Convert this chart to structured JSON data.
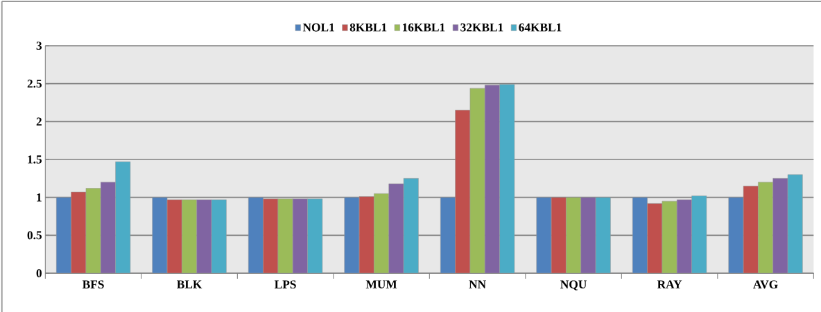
{
  "chart_data": {
    "type": "bar",
    "categories": [
      "BFS",
      "BLK",
      "LPS",
      "MUM",
      "NN",
      "NQU",
      "RAY",
      "AVG"
    ],
    "series": [
      {
        "name": "NOL1",
        "color": "#4f81bd",
        "values": [
          1,
          1,
          1,
          1,
          1,
          1,
          1,
          1
        ]
      },
      {
        "name": "8KBL1",
        "color": "#c0504d",
        "values": [
          1.07,
          0.97,
          0.98,
          1.01,
          2.15,
          1,
          0.92,
          1.15
        ]
      },
      {
        "name": "16KBL1",
        "color": "#9bbb59",
        "values": [
          1.12,
          0.97,
          0.98,
          1.05,
          2.44,
          1,
          0.95,
          1.2
        ]
      },
      {
        "name": "32KBL1",
        "color": "#8064a2",
        "values": [
          1.2,
          0.97,
          0.98,
          1.18,
          2.48,
          1,
          0.97,
          1.25
        ]
      },
      {
        "name": "64KBL1",
        "color": "#4bacc6",
        "values": [
          1.47,
          0.97,
          0.98,
          1.25,
          2.49,
          1,
          1.02,
          1.3
        ]
      }
    ],
    "ylim": [
      0,
      3
    ],
    "yticks": [
      0,
      0.5,
      1,
      1.5,
      2,
      2.5,
      3
    ],
    "grid": "y",
    "legend": "top"
  }
}
